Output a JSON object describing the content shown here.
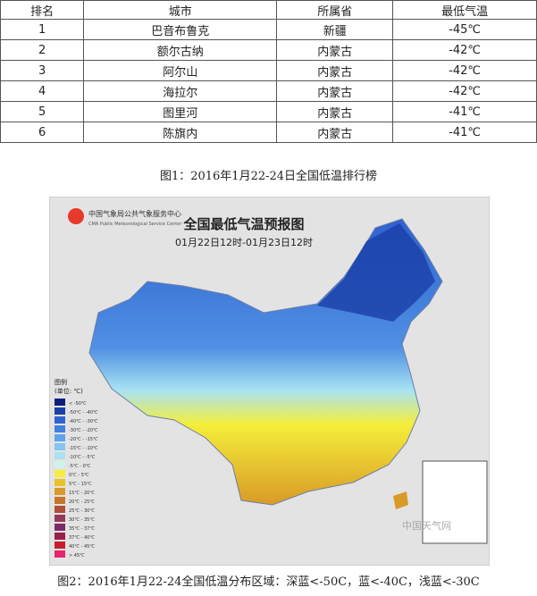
{
  "table": {
    "header": [
      "排名",
      "城市",
      "所属省",
      "最低气温"
    ],
    "rows": [
      [
        "1",
        "巴音布鲁克",
        "新疆",
        "-45℃"
      ],
      [
        "2",
        "额尔古纳",
        "内蒙古",
        "-42℃"
      ],
      [
        "3",
        "阿尔山",
        "内蒙古",
        "-42℃"
      ],
      [
        "4",
        "海拉尔",
        "内蒙古",
        "-42℃"
      ],
      [
        "5",
        "图里河",
        "内蒙古",
        "-41℃"
      ],
      [
        "6",
        "陈旗内",
        "内蒙古",
        "-41℃"
      ]
    ]
  },
  "caption1": "图1：2016年1月22-24日全国低温排行榜",
  "map": {
    "org": "中国气象局公共气象服务中心",
    "org_en": "CMA Public Meteorological Service Center",
    "title": "全国最低气温预报图",
    "subtitle": "01月22日12时-01月23日12时",
    "legend_title": "图例",
    "legend_unit": "(单位: ℃)",
    "legend": [
      {
        "label": "< -50℃",
        "color": "#0b1f7a"
      },
      {
        "label": "-50℃ - -40℃",
        "color": "#1a3fa8"
      },
      {
        "label": "-40℃ - -30℃",
        "color": "#2f62cf"
      },
      {
        "label": "-30℃ - -20℃",
        "color": "#3f7fe0"
      },
      {
        "label": "-20℃ - -15℃",
        "color": "#5fa3ea"
      },
      {
        "label": "-15℃ - -10℃",
        "color": "#86c4f0"
      },
      {
        "label": "-10℃ - -5℃",
        "color": "#a9e3f2"
      },
      {
        "label": "-5℃ - 0℃",
        "color": "#cdf3ea"
      },
      {
        "label": "0℃ - 5℃",
        "color": "#f5ee3a"
      },
      {
        "label": "5℃ - 15℃",
        "color": "#e9c128"
      },
      {
        "label": "15℃ - 20℃",
        "color": "#d99a26"
      },
      {
        "label": "20℃ - 25℃",
        "color": "#c7752a"
      },
      {
        "label": "25℃ - 30℃",
        "color": "#b04f36"
      },
      {
        "label": "30℃ - 35℃",
        "color": "#963a55"
      },
      {
        "label": "35℃ - 37℃",
        "color": "#7d2b6a"
      },
      {
        "label": "37℃ - 40℃",
        "color": "#9a1f4a"
      },
      {
        "label": "40℃ - 45℃",
        "color": "#c41f2c"
      },
      {
        "label": "> 45℃",
        "color": "#e6246b"
      }
    ],
    "watermark": "中国天气网"
  },
  "caption2": "图2：2016年1月22-24全国低温分布区域：深蓝<-50C，蓝<-40C，浅蓝<-30C"
}
